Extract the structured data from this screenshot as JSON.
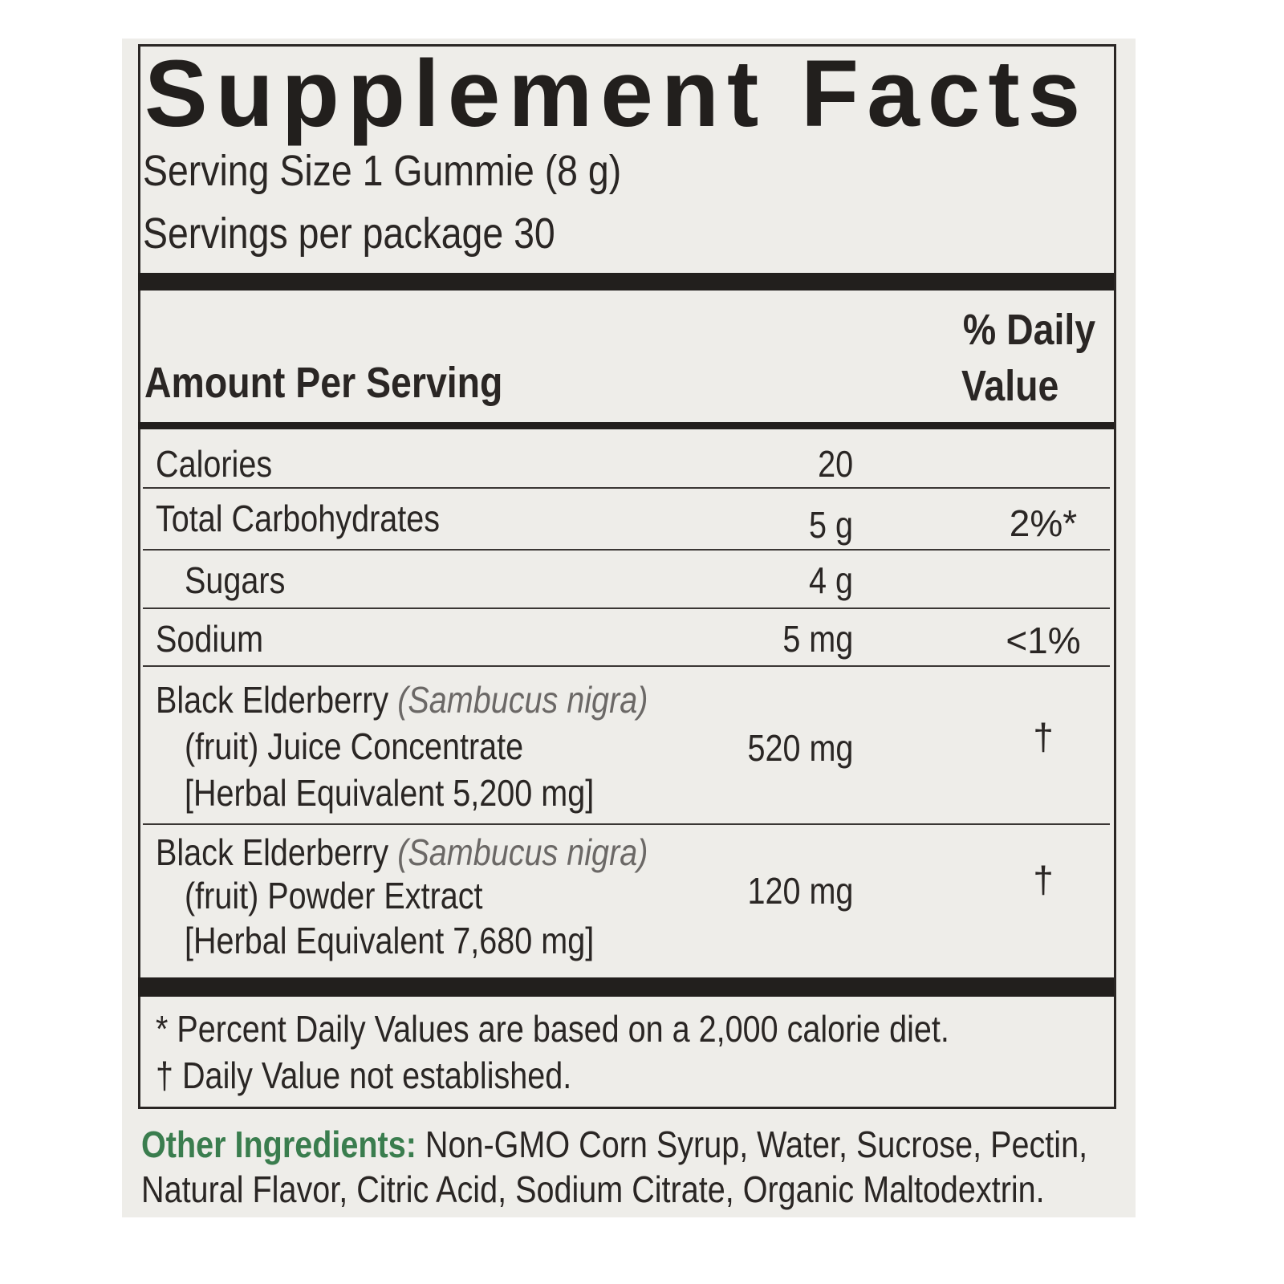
{
  "title": "Supplement Facts",
  "serving_size": "Serving Size 1 Gummie (8 g)",
  "servings_per_package": "Servings per package 30",
  "header": {
    "amount_per_serving": "Amount Per Serving",
    "daily_value_line1": "% Daily",
    "daily_value_line2": "Value"
  },
  "rows": [
    {
      "name": "Calories",
      "amount": "20",
      "dv": ""
    },
    {
      "name": "Total Carbohydrates",
      "amount": "5 g",
      "dv": "2%*"
    },
    {
      "name": "Sugars",
      "amount": "4 g",
      "dv": ""
    },
    {
      "name": "Sodium",
      "amount": "5 mg",
      "dv": "<1%"
    },
    {
      "name": "Black Elderberry",
      "latin": "(Sambucus nigra)",
      "line2": "(fruit) Juice Concentrate",
      "line3": "[Herbal Equivalent 5,200 mg]",
      "amount": "520 mg",
      "dv": "†"
    },
    {
      "name": "Black Elderberry",
      "latin": "(Sambucus nigra)",
      "line2": "(fruit) Powder Extract",
      "line3": "[Herbal Equivalent 7,680 mg]",
      "amount": "120 mg",
      "dv": "†"
    }
  ],
  "footnotes": [
    "* Percent Daily Values are based on a 2,000 calorie diet.",
    "† Daily Value not established."
  ],
  "other_ingredients": {
    "label": "Other Ingredients:",
    "line1": " Non-GMO Corn Syrup, Water, Sucrose, Pectin,",
    "line2": "Natural Flavor, Citric Acid, Sodium Citrate, Organic Maltodextrin."
  },
  "colors": {
    "background": "#eeede9",
    "ink": "#2a2624",
    "accent_green": "#3a7d4e"
  }
}
